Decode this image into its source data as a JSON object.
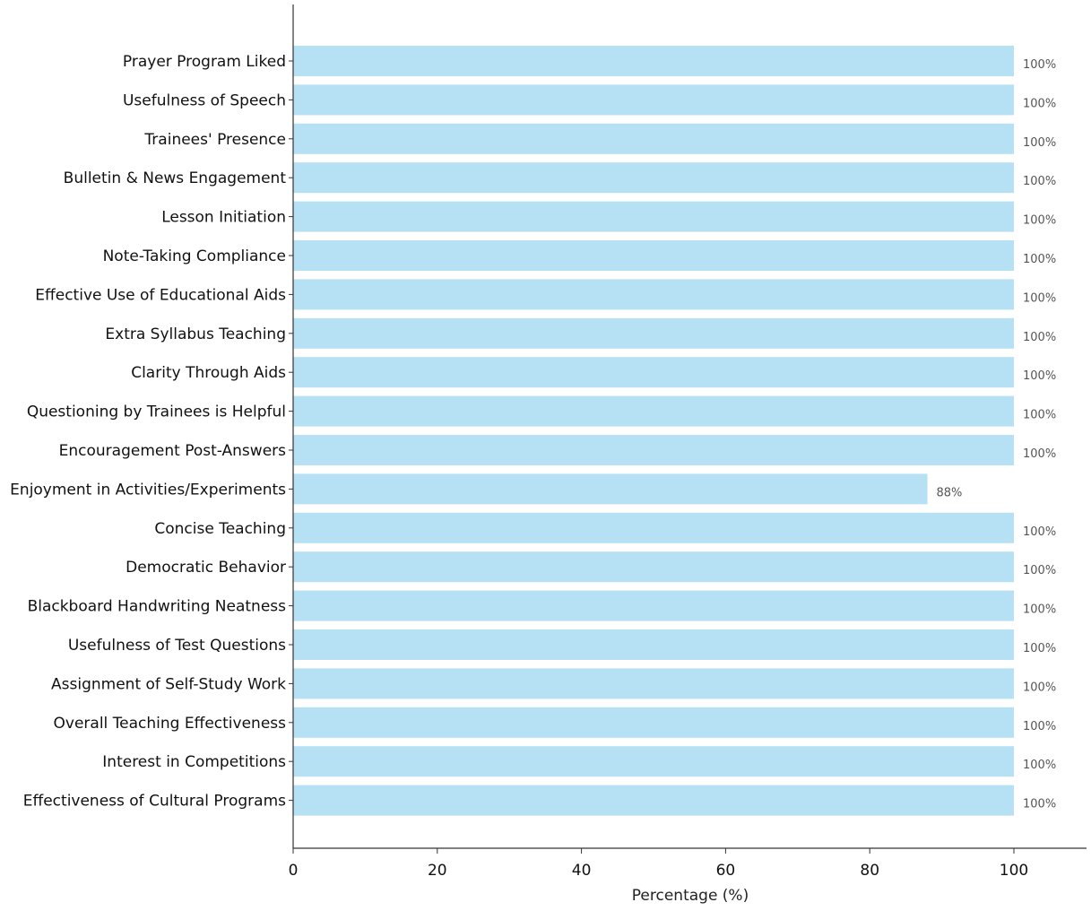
{
  "chart_data": {
    "type": "bar",
    "orientation": "horizontal",
    "categories": [
      "Prayer Program Liked",
      "Usefulness of Speech",
      "Trainees' Presence",
      "Bulletin & News Engagement",
      "Lesson Initiation",
      "Note-Taking Compliance",
      "Effective Use of Educational Aids",
      "Extra Syllabus Teaching",
      "Clarity Through Aids",
      "Questioning by Trainees is Helpful",
      "Encouragement Post-Answers",
      "Enjoyment in Activities/Experiments",
      "Concise Teaching",
      "Democratic Behavior",
      "Blackboard Handwriting Neatness",
      "Usefulness of Test Questions",
      "Assignment of Self-Study Work",
      "Overall Teaching Effectiveness",
      "Interest in Competitions",
      "Effectiveness of Cultural Programs"
    ],
    "values": [
      100,
      100,
      100,
      100,
      100,
      100,
      100,
      100,
      100,
      100,
      100,
      88,
      100,
      100,
      100,
      100,
      100,
      100,
      100,
      100
    ],
    "value_labels": [
      "100%",
      "100%",
      "100%",
      "100%",
      "100%",
      "100%",
      "100%",
      "100%",
      "100%",
      "100%",
      "100%",
      "88%",
      "100%",
      "100%",
      "100%",
      "100%",
      "100%",
      "100%",
      "100%",
      "100%"
    ],
    "xlabel": "Percentage (%)",
    "xlim": [
      0,
      110
    ],
    "xticks": [
      0,
      20,
      40,
      60,
      80,
      100
    ],
    "grid": false,
    "bar_color": "#a9dcf2"
  }
}
